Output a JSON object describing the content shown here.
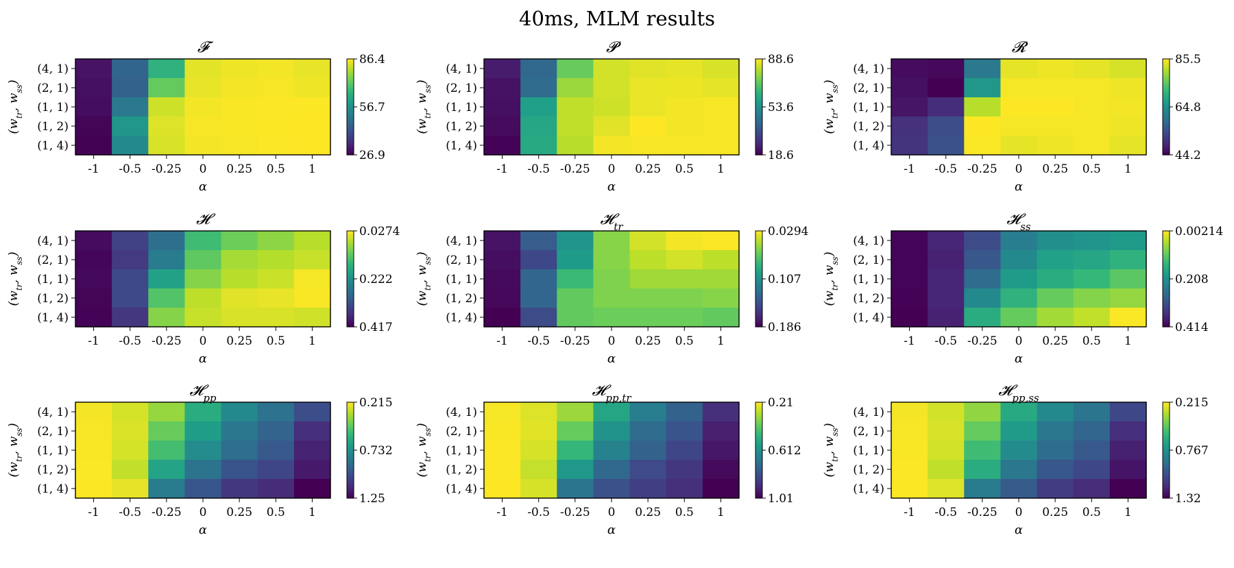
{
  "figure": {
    "suptitle": "40ms, MLM results"
  },
  "colormap": "viridis",
  "chart_data": [
    {
      "type": "heatmap",
      "title": "𝓕",
      "xlabel": "α",
      "ylabel": "(w_tr, w_ss)",
      "x": [
        "-1",
        "-0.5",
        "-0.25",
        "0",
        "0.25",
        "0.5",
        "1"
      ],
      "y": [
        "(4, 1)",
        "(2, 1)",
        "(1, 1)",
        "(1, 2)",
        "(1, 4)"
      ],
      "colorbar_ticks": [
        "86.4",
        "56.7",
        "26.9"
      ],
      "colorbar_range": [
        26.9,
        86.4
      ],
      "values": [
        [
          30.0,
          46.0,
          65.0,
          84.0,
          85.0,
          85.5,
          84.5
        ],
        [
          29.5,
          45.5,
          72.0,
          84.5,
          85.5,
          85.8,
          85.0
        ],
        [
          29.0,
          51.0,
          82.0,
          85.5,
          86.0,
          86.2,
          86.3
        ],
        [
          27.5,
          58.0,
          83.5,
          85.8,
          86.0,
          86.3,
          86.4
        ],
        [
          27.0,
          55.0,
          83.0,
          85.5,
          85.8,
          86.2,
          86.4
        ]
      ]
    },
    {
      "type": "heatmap",
      "title": "𝓟",
      "xlabel": "α",
      "ylabel": "(w_tr, w_ss)",
      "x": [
        "-1",
        "-0.5",
        "-0.25",
        "0",
        "0.25",
        "0.5",
        "1"
      ],
      "y": [
        "(4, 1)",
        "(2, 1)",
        "(1, 1)",
        "(1, 2)",
        "(1, 4)"
      ],
      "colorbar_ticks": [
        "88.6",
        "53.6",
        "18.6"
      ],
      "colorbar_range": [
        18.6,
        88.6
      ],
      "values": [
        [
          24.0,
          42.0,
          72.0,
          84.0,
          85.5,
          86.0,
          84.5
        ],
        [
          22.0,
          43.0,
          78.0,
          84.0,
          86.5,
          86.8,
          86.0
        ],
        [
          21.5,
          58.0,
          82.0,
          83.5,
          86.5,
          87.5,
          88.0
        ],
        [
          20.5,
          60.0,
          82.0,
          85.5,
          88.6,
          87.5,
          87.8
        ],
        [
          19.0,
          61.0,
          81.0,
          87.5,
          88.0,
          87.8,
          88.0
        ]
      ]
    },
    {
      "type": "heatmap",
      "title": "𝓡",
      "xlabel": "α",
      "ylabel": "(w_tr, w_ss)",
      "x": [
        "-1",
        "-0.5",
        "-0.25",
        "0",
        "0.25",
        "0.5",
        "1"
      ],
      "y": [
        "(4, 1)",
        "(2, 1)",
        "(1, 1)",
        "(1, 2)",
        "(1, 4)"
      ],
      "colorbar_ticks": [
        "85.5",
        "64.8",
        "44.2"
      ],
      "colorbar_range": [
        44.2,
        85.5
      ],
      "values": [
        [
          45.5,
          45.0,
          61.0,
          84.0,
          84.5,
          84.0,
          83.0
        ],
        [
          46.0,
          44.2,
          66.0,
          85.0,
          85.0,
          85.0,
          84.5
        ],
        [
          46.5,
          49.5,
          81.0,
          85.5,
          85.5,
          85.0,
          84.8
        ],
        [
          50.0,
          54.0,
          85.5,
          85.0,
          85.0,
          85.0,
          84.5
        ],
        [
          50.5,
          54.5,
          85.3,
          84.0,
          84.5,
          85.0,
          84.0
        ]
      ]
    },
    {
      "type": "heatmap",
      "title": "𝓗",
      "xlabel": "α",
      "ylabel": "(w_tr, w_ss)",
      "x": [
        "-1",
        "-0.5",
        "-0.25",
        "0",
        "0.25",
        "0.5",
        "1"
      ],
      "y": [
        "(4, 1)",
        "(2, 1)",
        "(1, 1)",
        "(1, 2)",
        "(1, 4)"
      ],
      "colorbar_ticks": [
        "0.0274",
        "0.222",
        "0.417"
      ],
      "colorbar_range": [
        0.417,
        0.0274
      ],
      "values": [
        [
          0.405,
          0.34,
          0.275,
          0.15,
          0.115,
          0.095,
          0.07
        ],
        [
          0.412,
          0.35,
          0.255,
          0.125,
          0.08,
          0.072,
          0.06
        ],
        [
          0.408,
          0.33,
          0.195,
          0.1,
          0.07,
          0.058,
          0.032
        ],
        [
          0.413,
          0.33,
          0.135,
          0.065,
          0.045,
          0.04,
          0.03
        ],
        [
          0.415,
          0.355,
          0.1,
          0.06,
          0.05,
          0.05,
          0.055
        ]
      ]
    },
    {
      "type": "heatmap",
      "title": "𝓗_tr",
      "xlabel": "α",
      "ylabel": "(w_tr, w_ss)",
      "x": [
        "-1",
        "-0.5",
        "-0.25",
        "0",
        "0.25",
        "0.5",
        "1"
      ],
      "y": [
        "(4, 1)",
        "(2, 1)",
        "(1, 1)",
        "(1, 2)",
        "(1, 4)"
      ],
      "colorbar_ticks": [
        "0.0294",
        "0.107",
        "0.186"
      ],
      "colorbar_range": [
        0.186,
        0.0294
      ],
      "values": [
        [
          0.178,
          0.14,
          0.105,
          0.058,
          0.04,
          0.032,
          0.03
        ],
        [
          0.18,
          0.152,
          0.1,
          0.058,
          0.045,
          0.04,
          0.045
        ],
        [
          0.182,
          0.135,
          0.08,
          0.06,
          0.052,
          0.052,
          0.052
        ],
        [
          0.183,
          0.135,
          0.068,
          0.06,
          0.06,
          0.06,
          0.058
        ],
        [
          0.186,
          0.15,
          0.068,
          0.065,
          0.065,
          0.065,
          0.068
        ]
      ]
    },
    {
      "type": "heatmap",
      "title": "𝓗_ss",
      "xlabel": "α",
      "ylabel": "(w_tr, w_ss)",
      "x": [
        "-1",
        "-0.5",
        "-0.25",
        "0",
        "0.25",
        "0.5",
        "1"
      ],
      "y": [
        "(4, 1)",
        "(2, 1)",
        "(1, 1)",
        "(1, 2)",
        "(1, 4)"
      ],
      "colorbar_ticks": [
        "0.00214",
        "0.208",
        "0.414"
      ],
      "colorbar_range": [
        0.414,
        0.00214
      ],
      "values": [
        [
          0.41,
          0.37,
          0.32,
          0.24,
          0.21,
          0.2,
          0.19
        ],
        [
          0.41,
          0.375,
          0.3,
          0.22,
          0.18,
          0.17,
          0.15
        ],
        [
          0.41,
          0.37,
          0.27,
          0.19,
          0.16,
          0.14,
          0.11
        ],
        [
          0.412,
          0.37,
          0.22,
          0.15,
          0.1,
          0.08,
          0.07
        ],
        [
          0.414,
          0.375,
          0.16,
          0.1,
          0.06,
          0.04,
          0.004
        ]
      ]
    },
    {
      "type": "heatmap",
      "title": "𝓗_pp",
      "xlabel": "α",
      "ylabel": "(w_tr, w_ss)",
      "x": [
        "-1",
        "-0.5",
        "-0.25",
        "0",
        "0.25",
        "0.5",
        "1"
      ],
      "y": [
        "(4, 1)",
        "(2, 1)",
        "(1, 1)",
        "(1, 2)",
        "(1, 4)"
      ],
      "colorbar_ticks": [
        "0.215",
        "0.732",
        "1.25"
      ],
      "colorbar_range": [
        1.25,
        0.215
      ],
      "values": [
        [
          0.23,
          0.28,
          0.38,
          0.61,
          0.76,
          0.86,
          1.0
        ],
        [
          0.225,
          0.27,
          0.46,
          0.68,
          0.84,
          0.92,
          1.11
        ],
        [
          0.222,
          0.28,
          0.53,
          0.75,
          0.88,
          0.96,
          1.15
        ],
        [
          0.219,
          0.31,
          0.65,
          0.85,
          0.98,
          1.03,
          1.18
        ],
        [
          0.217,
          0.25,
          0.82,
          0.97,
          1.08,
          1.12,
          1.25
        ]
      ]
    },
    {
      "type": "heatmap",
      "title": "𝓗_pp,tr",
      "xlabel": "α",
      "ylabel": "(w_tr, w_ss)",
      "x": [
        "-1",
        "-0.5",
        "-0.25",
        "0",
        "0.25",
        "0.5",
        "1"
      ],
      "y": [
        "(4, 1)",
        "(2, 1)",
        "(1, 1)",
        "(1, 2)",
        "(1, 4)"
      ],
      "colorbar_ticks": [
        "0.21",
        "0.612",
        "1.01"
      ],
      "colorbar_range": [
        1.01,
        0.21
      ],
      "values": [
        [
          0.22,
          0.25,
          0.33,
          0.54,
          0.67,
          0.76,
          0.9
        ],
        [
          0.215,
          0.245,
          0.4,
          0.6,
          0.73,
          0.8,
          0.94
        ],
        [
          0.213,
          0.26,
          0.48,
          0.65,
          0.76,
          0.84,
          0.96
        ],
        [
          0.212,
          0.28,
          0.58,
          0.74,
          0.83,
          0.88,
          0.99
        ],
        [
          0.21,
          0.26,
          0.7,
          0.81,
          0.86,
          0.9,
          1.01
        ]
      ]
    },
    {
      "type": "heatmap",
      "title": "𝓗_pp,ss",
      "xlabel": "α",
      "ylabel": "(w_tr, w_ss)",
      "x": [
        "-1",
        "-0.5",
        "-0.25",
        "0",
        "0.25",
        "0.5",
        "1"
      ],
      "y": [
        "(4, 1)",
        "(2, 1)",
        "(1, 1)",
        "(1, 2)",
        "(1, 4)"
      ],
      "colorbar_ticks": [
        "0.215",
        "0.767",
        "1.32"
      ],
      "colorbar_range": [
        1.32,
        0.215
      ],
      "values": [
        [
          0.23,
          0.29,
          0.4,
          0.65,
          0.8,
          0.89,
          1.08
        ],
        [
          0.225,
          0.28,
          0.48,
          0.72,
          0.88,
          0.96,
          1.17
        ],
        [
          0.222,
          0.29,
          0.56,
          0.79,
          0.93,
          1.01,
          1.22
        ],
        [
          0.219,
          0.32,
          0.64,
          0.88,
          1.02,
          1.08,
          1.26
        ],
        [
          0.217,
          0.27,
          0.86,
          1.0,
          1.12,
          1.18,
          1.32
        ]
      ]
    }
  ]
}
